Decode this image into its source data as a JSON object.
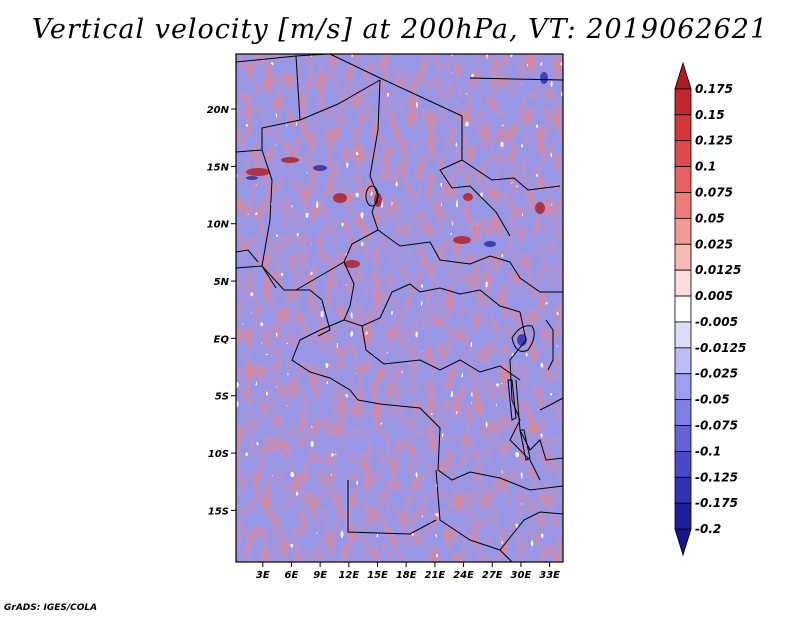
{
  "title": "Vertical velocity [m/s] at 200hPa, VT: 2019062621",
  "footer": "GrADS: IGES/COLA",
  "map": {
    "lat_labels": [
      "20N",
      "15N",
      "10N",
      "5N",
      "EQ",
      "5S",
      "10S",
      "15S"
    ],
    "lat_values": [
      20,
      15,
      10,
      5,
      0,
      -5,
      -10,
      -15
    ],
    "lon_labels": [
      "3E",
      "6E",
      "9E",
      "12E",
      "15E",
      "18E",
      "21E",
      "24E",
      "27E",
      "30E",
      "33E"
    ],
    "lon_values": [
      3,
      6,
      9,
      12,
      15,
      18,
      21,
      24,
      27,
      30,
      33
    ],
    "lat_range": [
      -19.5,
      24.8
    ],
    "lon_range": [
      0.2,
      34.4
    ]
  },
  "colorbar": {
    "labels": [
      "0.175",
      "0.15",
      "0.125",
      "0.1",
      "0.075",
      "0.05",
      "0.025",
      "0.0125",
      "0.005",
      "-0.005",
      "-0.0125",
      "-0.025",
      "-0.05",
      "-0.075",
      "-0.1",
      "-0.125",
      "-0.175",
      "-0.2"
    ],
    "colors": [
      "#b01a22",
      "#c4262d",
      "#d4373a",
      "#e04a4a",
      "#e96262",
      "#ee7b78",
      "#f29a95",
      "#f6bab5",
      "#fadcd8",
      "#ffffff",
      "#dcdcf8",
      "#bcbcf2",
      "#9e9eec",
      "#8080e4",
      "#6464d8",
      "#4a4ac8",
      "#3232b4",
      "#1e1e9c",
      "#16168a"
    ]
  }
}
